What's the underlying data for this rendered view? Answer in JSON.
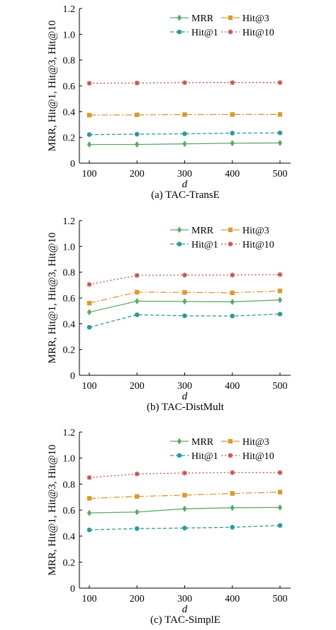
{
  "chart_data": [
    {
      "type": "line",
      "caption": "(a) TAC-TransE",
      "xlabel": "d",
      "ylabel": "MRR, Hit@1, Hit@3, Hit@10",
      "x": [
        100,
        200,
        300,
        400,
        500
      ],
      "xticks": [
        "100",
        "200",
        "300",
        "400",
        "500"
      ],
      "ylim": [
        0,
        1.2
      ],
      "yticks": [
        "0",
        "0.2",
        "0.4",
        "0.6",
        "0.8",
        "1.0",
        "1.2"
      ],
      "legend_position": "top-right",
      "series": [
        {
          "name": "MRR",
          "values": [
            0.145,
            0.145,
            0.15,
            0.155,
            0.157
          ]
        },
        {
          "name": "Hit@3",
          "values": [
            0.373,
            0.375,
            0.377,
            0.378,
            0.378
          ]
        },
        {
          "name": "Hit@1",
          "values": [
            0.222,
            0.225,
            0.228,
            0.233,
            0.235
          ]
        },
        {
          "name": "Hit@10",
          "values": [
            0.62,
            0.622,
            0.625,
            0.625,
            0.625
          ]
        }
      ]
    },
    {
      "type": "line",
      "caption": "(b) TAC-DistMult",
      "xlabel": "d",
      "ylabel": "MRR, Hit@1, Hit@3, Hit@10",
      "x": [
        100,
        200,
        300,
        400,
        500
      ],
      "xticks": [
        "100",
        "200",
        "300",
        "400",
        "500"
      ],
      "ylim": [
        0,
        1.2
      ],
      "yticks": [
        "0",
        "0.2",
        "0.4",
        "0.6",
        "0.8",
        "1.0",
        "1.2"
      ],
      "legend_position": "top-right",
      "series": [
        {
          "name": "MRR",
          "values": [
            0.49,
            0.575,
            0.573,
            0.57,
            0.585
          ]
        },
        {
          "name": "Hit@3",
          "values": [
            0.56,
            0.645,
            0.643,
            0.64,
            0.655
          ]
        },
        {
          "name": "Hit@1",
          "values": [
            0.373,
            0.47,
            0.462,
            0.46,
            0.475
          ]
        },
        {
          "name": "Hit@10",
          "values": [
            0.705,
            0.775,
            0.778,
            0.778,
            0.782
          ]
        }
      ]
    },
    {
      "type": "line",
      "caption": "(c) TAC-SimplE",
      "xlabel": "d",
      "ylabel": "MRR, Hit@1, Hit@3, Hit@10",
      "x": [
        100,
        200,
        300,
        400,
        500
      ],
      "xticks": [
        "100",
        "200",
        "300",
        "400",
        "500"
      ],
      "ylim": [
        0,
        1.2
      ],
      "yticks": [
        "0",
        "0.2",
        "0.4",
        "0.6",
        "0.8",
        "1.0",
        "1.2"
      ],
      "legend_position": "top-right",
      "series": [
        {
          "name": "MRR",
          "values": [
            0.578,
            0.585,
            0.61,
            0.618,
            0.62
          ]
        },
        {
          "name": "Hit@3",
          "values": [
            0.69,
            0.705,
            0.715,
            0.728,
            0.738
          ]
        },
        {
          "name": "Hit@1",
          "values": [
            0.448,
            0.458,
            0.462,
            0.468,
            0.482
          ]
        },
        {
          "name": "Hit@10",
          "values": [
            0.85,
            0.878,
            0.885,
            0.888,
            0.888
          ]
        }
      ]
    }
  ],
  "series_styles": [
    {
      "name": "MRR",
      "color": "#5fa86a",
      "marker": "diamond",
      "dash": ""
    },
    {
      "name": "Hit@3",
      "color": "#d99a2e",
      "marker": "square",
      "dash": "9,3,2,3"
    },
    {
      "name": "Hit@1",
      "color": "#2e9a9a",
      "marker": "circle",
      "dash": "5,3"
    },
    {
      "name": "Hit@10",
      "color": "#c0504d",
      "marker": "star",
      "dash": "2,3"
    }
  ]
}
